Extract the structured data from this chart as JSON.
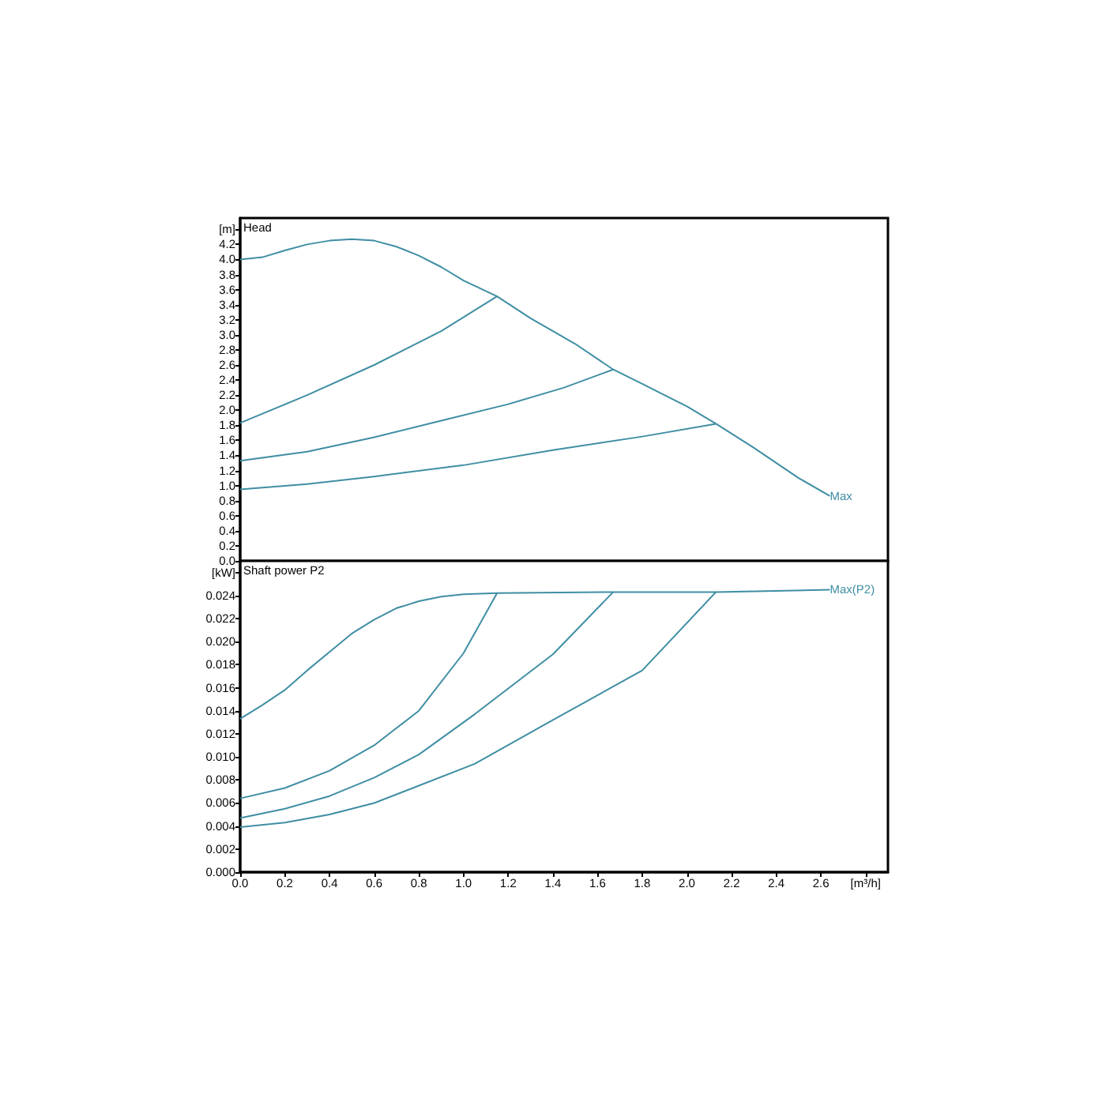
{
  "chart_data": [
    {
      "type": "line",
      "title": "Head",
      "tick_labels": "y",
      "grid": false,
      "xlim": [
        0,
        2.9
      ],
      "xticks": [
        0,
        0.2,
        0.4,
        0.6,
        0.8,
        1,
        1.2,
        1.4,
        1.6,
        1.8,
        2,
        2.2,
        2.4,
        2.6,
        2.8
      ],
      "ylim": [
        0,
        4.55
      ],
      "yticks": [
        {
          "value": 0,
          "label": "0.0"
        },
        0.2,
        0.4,
        0.6,
        0.8,
        {
          "value": 1,
          "label": "1.0"
        },
        1.2,
        1.4,
        1.6,
        1.8,
        {
          "value": 2,
          "label": "2.0"
        },
        2.2,
        2.4,
        2.6,
        2.8,
        {
          "value": 3,
          "label": "3.0"
        },
        3.2,
        3.4,
        3.6,
        3.8,
        {
          "value": 4,
          "label": "4.0"
        },
        4.2,
        {
          "value": 4.4,
          "label": "[m]"
        }
      ],
      "series": [
        {
          "name": "Max",
          "color": "#3f8ea3",
          "x": [
            0,
            0.1,
            0.2,
            0.3,
            0.4,
            0.5,
            0.6,
            0.7,
            0.8,
            0.9,
            1.0,
            1.15,
            1.3,
            1.5,
            1.67,
            1.8,
            2.0,
            2.13,
            2.3,
            2.5,
            2.64
          ],
          "values": [
            4.0,
            4.03,
            4.12,
            4.2,
            4.25,
            4.27,
            4.25,
            4.17,
            4.05,
            3.9,
            3.72,
            3.51,
            3.22,
            2.88,
            2.54,
            2.35,
            2.05,
            1.82,
            1.5,
            1.1,
            0.86
          ]
        },
        {
          "color": "#3f8ea3",
          "x": [
            0,
            0.3,
            0.6,
            0.9,
            1.15
          ],
          "values": [
            1.83,
            2.2,
            2.6,
            3.05,
            3.51
          ]
        },
        {
          "color": "#3f8ea3",
          "x": [
            0,
            0.3,
            0.6,
            0.9,
            1.2,
            1.45,
            1.67
          ],
          "values": [
            1.33,
            1.45,
            1.64,
            1.86,
            2.08,
            2.3,
            2.54
          ]
        },
        {
          "color": "#3f8ea3",
          "x": [
            0,
            0.3,
            0.6,
            1.0,
            1.4,
            1.8,
            2.13
          ],
          "values": [
            0.95,
            1.02,
            1.12,
            1.27,
            1.47,
            1.65,
            1.82
          ]
        }
      ]
    },
    {
      "type": "line",
      "title": "Shaft power P2",
      "grid": false,
      "xlim": [
        0,
        2.9
      ],
      "xticks": [
        {
          "value": 0,
          "label": "0.0"
        },
        0.2,
        0.4,
        0.6,
        0.8,
        {
          "value": 1,
          "label": "1.0"
        },
        1.2,
        1.4,
        1.6,
        1.8,
        {
          "value": 2,
          "label": "2.0"
        },
        2.2,
        2.4,
        2.6,
        {
          "value": 2.8,
          "label": "[m³/h]"
        }
      ],
      "ylim": [
        0,
        0.027
      ],
      "yticks": [
        {
          "value": 0,
          "label": "0.000"
        },
        0.002,
        0.004,
        0.006,
        0.008,
        {
          "value": 0.01,
          "label": "0.010"
        },
        0.012,
        0.014,
        0.016,
        0.018,
        {
          "value": 0.02,
          "label": "0.020"
        },
        0.022,
        0.024,
        {
          "value": 0.026,
          "label": "[kW]"
        }
      ],
      "series": [
        {
          "name": "Max(P2)",
          "color": "#3f8ea3",
          "x": [
            0,
            0.1,
            0.2,
            0.3,
            0.4,
            0.5,
            0.6,
            0.7,
            0.8,
            0.9,
            1.0,
            1.15,
            1.67,
            2.13,
            2.64
          ],
          "values": [
            0.0133,
            0.0145,
            0.0158,
            0.0175,
            0.0191,
            0.0207,
            0.0219,
            0.0229,
            0.0235,
            0.0239,
            0.0241,
            0.0242,
            0.0243,
            0.0243,
            0.0245
          ]
        },
        {
          "color": "#3f8ea3",
          "x": [
            0,
            0.2,
            0.4,
            0.6,
            0.8,
            1.0,
            1.15
          ],
          "values": [
            0.0064,
            0.0073,
            0.0088,
            0.011,
            0.014,
            0.019,
            0.0242
          ]
        },
        {
          "color": "#3f8ea3",
          "x": [
            0,
            0.2,
            0.4,
            0.6,
            0.8,
            1.05,
            1.4,
            1.67
          ],
          "values": [
            0.0047,
            0.0055,
            0.0066,
            0.0082,
            0.0102,
            0.0137,
            0.0189,
            0.0243
          ]
        },
        {
          "color": "#3f8ea3",
          "x": [
            0,
            0.2,
            0.4,
            0.6,
            0.8,
            1.05,
            1.4,
            1.8,
            2.13
          ],
          "values": [
            0.0039,
            0.0043,
            0.005,
            0.006,
            0.0075,
            0.0094,
            0.0132,
            0.0175,
            0.0243
          ]
        }
      ]
    }
  ]
}
